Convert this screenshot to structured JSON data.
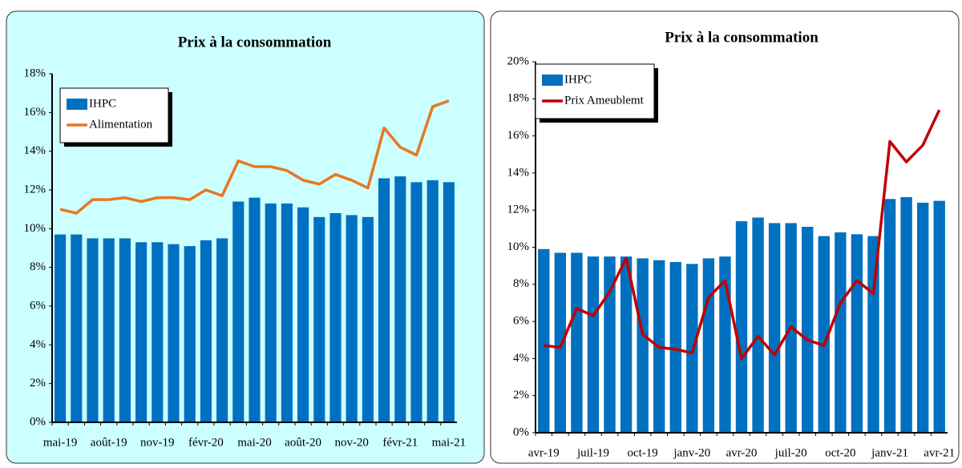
{
  "chart_data": [
    {
      "type": "bar-line",
      "title": "Prix à la consommation",
      "categories": [
        "mai-19",
        null,
        null,
        "août-19",
        null,
        null,
        "nov-19",
        null,
        null,
        "févr-20",
        null,
        null,
        "mai-20",
        null,
        null,
        "août-20",
        null,
        null,
        "nov-20",
        null,
        null,
        "févr-21",
        null,
        null,
        "mai-21"
      ],
      "series": [
        {
          "name": "IHPC",
          "type": "bar",
          "color": "#0070c0",
          "values": [
            9.7,
            9.7,
            9.5,
            9.5,
            9.5,
            9.3,
            9.3,
            9.2,
            9.1,
            9.4,
            9.5,
            11.4,
            11.6,
            11.3,
            11.3,
            11.1,
            10.6,
            10.8,
            10.7,
            10.6,
            12.6,
            12.7,
            12.4,
            12.5,
            12.4
          ]
        },
        {
          "name": "Alimentation",
          "type": "line",
          "color": "#e87722",
          "values": [
            11.0,
            10.8,
            11.5,
            11.5,
            11.6,
            11.4,
            11.6,
            11.6,
            11.5,
            12.0,
            11.7,
            13.5,
            13.2,
            13.2,
            13.0,
            12.5,
            12.3,
            12.8,
            12.5,
            12.1,
            15.2,
            14.2,
            13.8,
            16.3,
            16.6
          ]
        }
      ],
      "ylim": [
        0,
        18
      ],
      "yticks": [
        {
          "value": 0,
          "label": "0%"
        },
        {
          "value": 2,
          "label": "2%"
        },
        {
          "value": 4,
          "label": "4%"
        },
        {
          "value": 6,
          "label": "6%"
        },
        {
          "value": 8,
          "label": "8%"
        },
        {
          "value": 10,
          "label": "10%"
        },
        {
          "value": 12,
          "label": "12%"
        },
        {
          "value": 14,
          "label": "14%"
        },
        {
          "value": 16,
          "label": "16%"
        },
        {
          "value": 18,
          "label": "18%"
        }
      ],
      "legend": "upper left"
    },
    {
      "type": "bar-line",
      "title": "Prix à la consommation",
      "categories": [
        "avr-19",
        null,
        null,
        "juil-19",
        null,
        null,
        "oct-19",
        null,
        null,
        "janv-20",
        null,
        null,
        "avr-20",
        null,
        null,
        "juil-20",
        null,
        null,
        "oct-20",
        null,
        null,
        "janv-21",
        null,
        null,
        "avr-21"
      ],
      "series": [
        {
          "name": "IHPC",
          "type": "bar",
          "color": "#0070c0",
          "values": [
            9.9,
            9.7,
            9.7,
            9.5,
            9.5,
            9.5,
            9.4,
            9.3,
            9.2,
            9.1,
            9.4,
            9.5,
            11.4,
            11.6,
            11.3,
            11.3,
            11.1,
            10.6,
            10.8,
            10.7,
            10.6,
            12.6,
            12.7,
            12.4,
            12.5
          ]
        },
        {
          "name": "Prix Ameublemt",
          "type": "line",
          "color": "#c00000",
          "values": [
            4.7,
            4.6,
            6.7,
            6.3,
            7.6,
            9.4,
            5.3,
            4.6,
            4.5,
            4.3,
            7.3,
            8.2,
            4.0,
            5.2,
            4.2,
            5.7,
            5.0,
            4.7,
            7.0,
            8.2,
            7.5,
            15.7,
            14.6,
            15.5,
            17.4
          ]
        }
      ],
      "ylim": [
        0,
        20
      ],
      "yticks": [
        {
          "value": 0,
          "label": "0%"
        },
        {
          "value": 2,
          "label": "2%"
        },
        {
          "value": 4,
          "label": "4%"
        },
        {
          "value": 6,
          "label": "6%"
        },
        {
          "value": 8,
          "label": "8%"
        },
        {
          "value": 10,
          "label": "10%"
        },
        {
          "value": 12,
          "label": "12%"
        },
        {
          "value": 14,
          "label": "14%"
        },
        {
          "value": 16,
          "label": "16%"
        },
        {
          "value": 18,
          "label": "18%"
        },
        {
          "value": 20,
          "label": "20%"
        }
      ],
      "legend": "upper left"
    }
  ]
}
